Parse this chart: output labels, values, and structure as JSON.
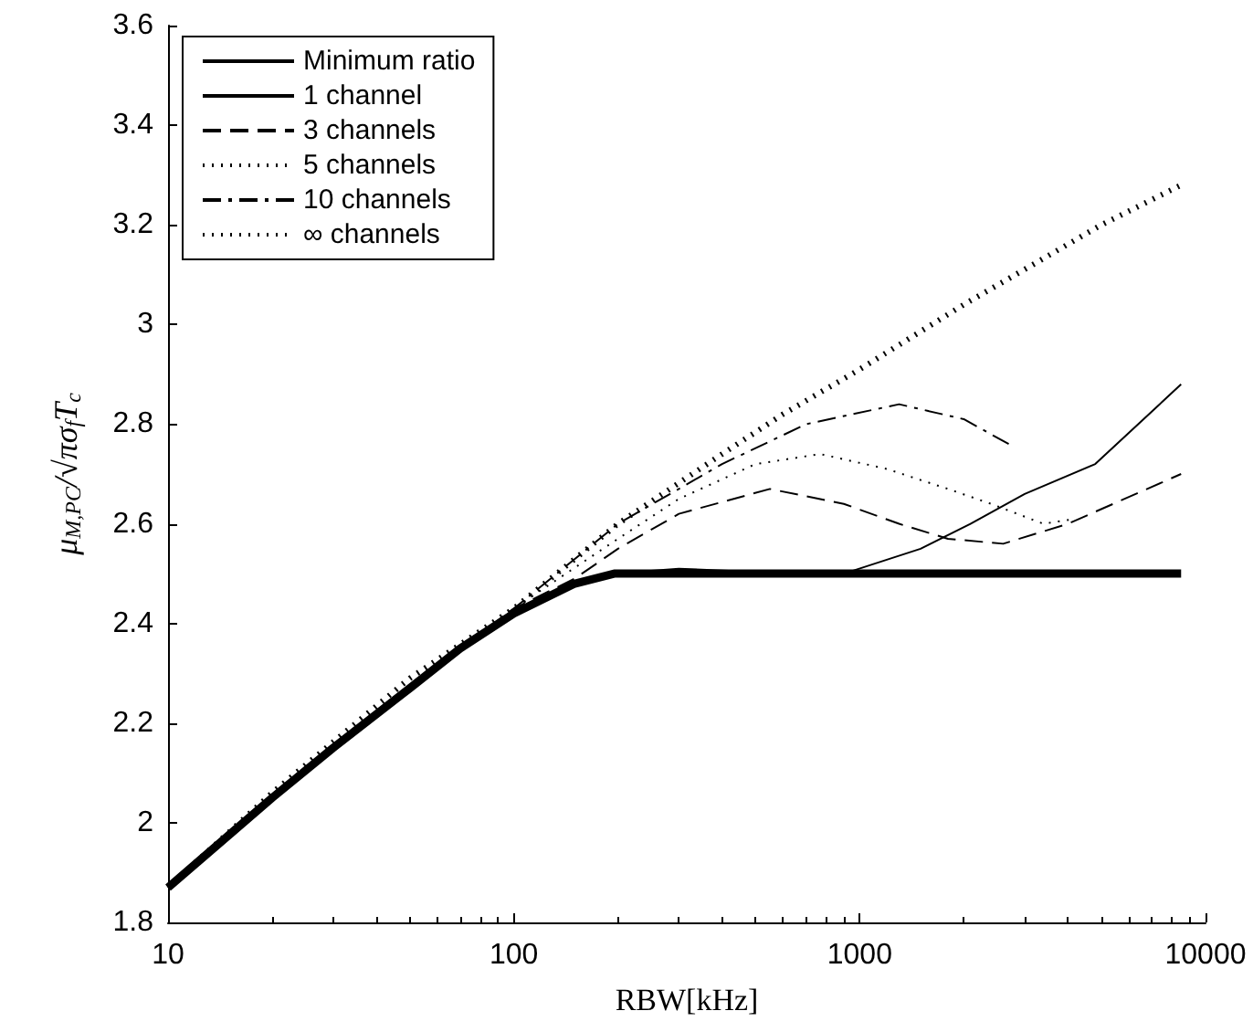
{
  "chart_data": {
    "type": "line",
    "xlabel": "RBW[kHz]",
    "ylabel": "μ$_{M,PC}$/√πσ$_{f}$T$_{c}$",
    "log": "x",
    "xlim": [
      10,
      10000
    ],
    "xticks": [
      10,
      100,
      1000,
      10000
    ],
    "ylim": [
      1.8,
      3.6
    ],
    "yticks": [
      1.8,
      2,
      2.2,
      2.4,
      2.6,
      2.8,
      3,
      3.2,
      3.4,
      3.6
    ],
    "grid": false,
    "legend": "top left",
    "marker": "none",
    "series": [
      {
        "name": "Minimum ratio",
        "color": "#000000",
        "line_style": "solid",
        "x": [
          10,
          20,
          30,
          50,
          70,
          100,
          150,
          195,
          8500
        ],
        "values": [
          1.87,
          2.05,
          2.15,
          2.27,
          2.35,
          2.42,
          2.48,
          2.5,
          2.5
        ]
      },
      {
        "name": "1 channel",
        "color": "#000000",
        "line_style": "solid",
        "x": [
          10,
          20,
          30,
          50,
          70,
          100,
          150,
          195,
          300,
          450,
          600,
          900,
          1500,
          2090,
          3000,
          4800,
          8500
        ],
        "values": [
          1.87,
          2.05,
          2.15,
          2.27,
          2.35,
          2.42,
          2.48,
          2.5,
          2.51,
          2.505,
          2.5,
          2.5,
          2.55,
          2.6,
          2.66,
          2.72,
          2.88
        ]
      },
      {
        "name": "3 channels",
        "color": "#000000",
        "line_style": "dashed",
        "x": [
          10,
          20,
          30,
          50,
          70,
          100,
          150,
          200,
          300,
          550,
          900,
          1300,
          1800,
          2600,
          4000,
          8500
        ],
        "values": [
          1.87,
          2.05,
          2.15,
          2.27,
          2.35,
          2.43,
          2.49,
          2.55,
          2.62,
          2.67,
          2.64,
          2.6,
          2.57,
          2.56,
          2.6,
          2.7
        ]
      },
      {
        "name": "5 channels",
        "color": "#000000",
        "line_style": "dotted",
        "x": [
          10,
          20,
          30,
          50,
          70,
          100,
          200,
          300,
          500,
          770,
          1200,
          1800,
          2400,
          3400,
          4200
        ],
        "values": [
          1.87,
          2.05,
          2.15,
          2.27,
          2.35,
          2.43,
          2.57,
          2.65,
          2.72,
          2.74,
          2.71,
          2.67,
          2.64,
          2.6,
          2.61
        ]
      },
      {
        "name": "10 channels",
        "color": "#000000",
        "line_style": "dashdot",
        "x": [
          10,
          20,
          30,
          50,
          70,
          100,
          200,
          400,
          700,
          1300,
          2000,
          2700
        ],
        "values": [
          1.87,
          2.05,
          2.15,
          2.27,
          2.35,
          2.43,
          2.6,
          2.72,
          2.8,
          2.84,
          2.81,
          2.76
        ]
      },
      {
        "name": "∞ channels",
        "color": "#000000",
        "line_style": "dotted",
        "x": [
          10,
          20,
          50,
          100,
          200,
          400,
          600,
          1000,
          2000,
          5000,
          8500
        ],
        "values": [
          1.87,
          2.06,
          2.29,
          2.43,
          2.6,
          2.74,
          2.82,
          2.91,
          3.04,
          3.2,
          3.28
        ]
      }
    ]
  }
}
